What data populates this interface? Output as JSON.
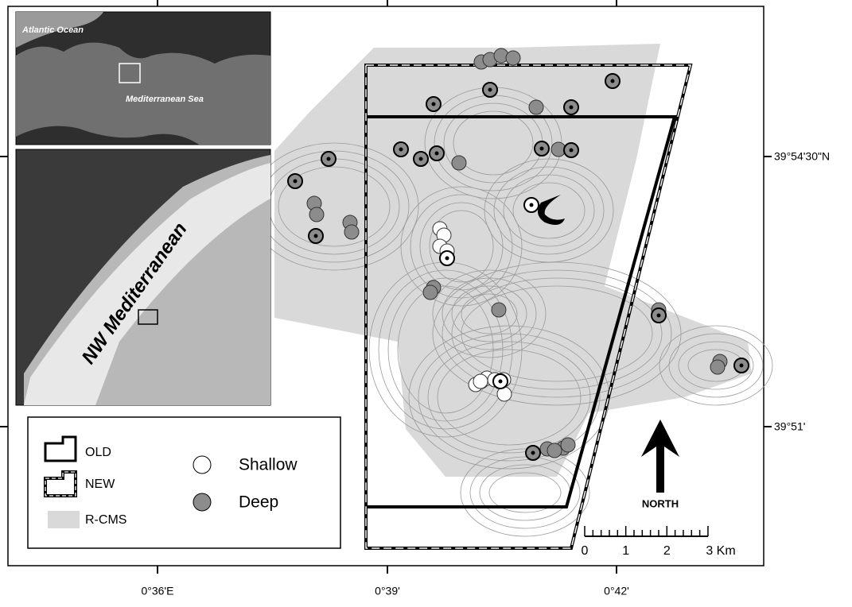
{
  "map": {
    "inset_labels": {
      "atlantic": "Atlantic Ocean",
      "mediterranean": "Mediterranean Sea",
      "region": "NW Mediterranean"
    },
    "legend": {
      "old": "OLD",
      "new": "NEW",
      "rcms": "R-CMS",
      "shallow": "Shallow",
      "deep": "Deep"
    },
    "north": "NORTH",
    "scale": [
      "0",
      "1",
      "2",
      "3 Km"
    ],
    "x_labels": [
      "0°36'E",
      "0°39'",
      "0°42'"
    ],
    "y_labels": [
      "39°54'30\"N",
      "39°51'"
    ]
  }
}
